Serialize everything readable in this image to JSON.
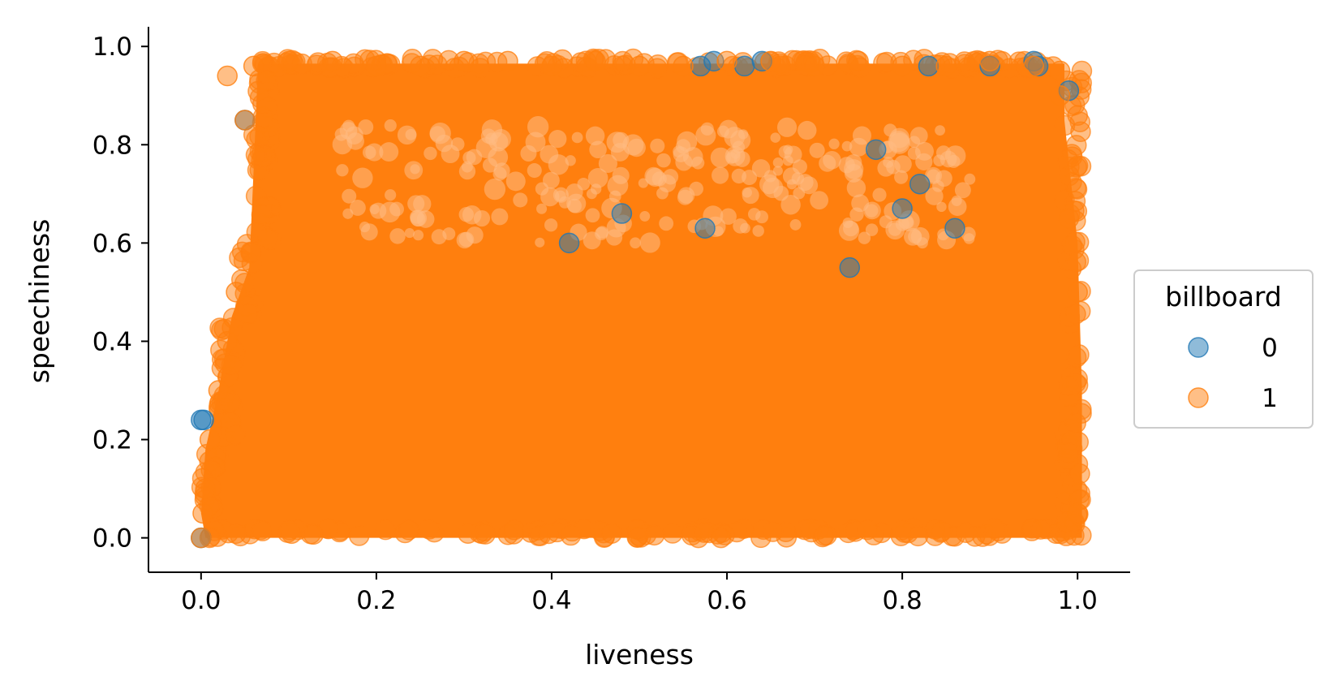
{
  "chart_data": {
    "type": "scatter",
    "xlabel": "liveness",
    "ylabel": "speechiness",
    "xlim": [
      -0.06,
      1.06
    ],
    "ylim": [
      -0.07,
      1.04
    ],
    "xticks": [
      0.0,
      0.2,
      0.4,
      0.6,
      0.8,
      1.0
    ],
    "xtick_labels": [
      "0.0",
      "0.2",
      "0.4",
      "0.6",
      "0.8",
      "1.0"
    ],
    "yticks": [
      0.0,
      0.2,
      0.4,
      0.6,
      0.8,
      1.0
    ],
    "ytick_labels": [
      "0.0",
      "0.2",
      "0.4",
      "0.6",
      "0.8",
      "1.0"
    ],
    "grid": false,
    "legend": {
      "title": "billboard",
      "placement": "center-right, outside plot",
      "entries": [
        {
          "label": "0",
          "color": "#1f77b4"
        },
        {
          "label": "1",
          "color": "#ff7f0e"
        }
      ]
    },
    "marker_alpha": 0.5,
    "series": [
      {
        "name": "0",
        "color": "#1f77b4",
        "x": [
          0.0,
          0.0,
          0.003,
          0.05,
          0.42,
          0.48,
          0.57,
          0.575,
          0.585,
          0.62,
          0.64,
          0.74,
          0.77,
          0.8,
          0.82,
          0.83,
          0.86,
          0.9,
          0.95,
          0.955,
          0.99
        ],
        "y": [
          0.0,
          0.24,
          0.24,
          0.85,
          0.6,
          0.66,
          0.96,
          0.63,
          0.97,
          0.96,
          0.97,
          0.55,
          0.79,
          0.67,
          0.72,
          0.96,
          0.63,
          0.96,
          0.97,
          0.96,
          0.91
        ]
      },
      {
        "name": "1",
        "color": "#ff7f0e",
        "x": [
          0.0,
          0.002,
          0.005,
          0.01,
          0.02,
          0.03,
          0.03,
          0.04,
          0.05,
          0.06,
          0.1,
          0.15,
          0.2,
          0.25,
          0.3,
          0.35,
          0.4,
          0.45,
          0.5,
          0.55,
          0.6,
          0.65,
          0.7,
          0.75,
          0.8,
          0.85,
          0.9,
          0.95,
          0.98,
          1.0,
          1.0,
          0.99,
          0.98
        ],
        "y": [
          0.0,
          0.05,
          0.1,
          0.2,
          0.3,
          0.4,
          0.94,
          0.5,
          0.85,
          0.96,
          0.97,
          0.97,
          0.96,
          0.96,
          0.97,
          0.97,
          0.96,
          0.97,
          0.96,
          0.96,
          0.97,
          0.97,
          0.96,
          0.97,
          0.96,
          0.96,
          0.97,
          0.96,
          0.95,
          0.05,
          0.5,
          0.65,
          0.9
        ]
      }
    ]
  }
}
